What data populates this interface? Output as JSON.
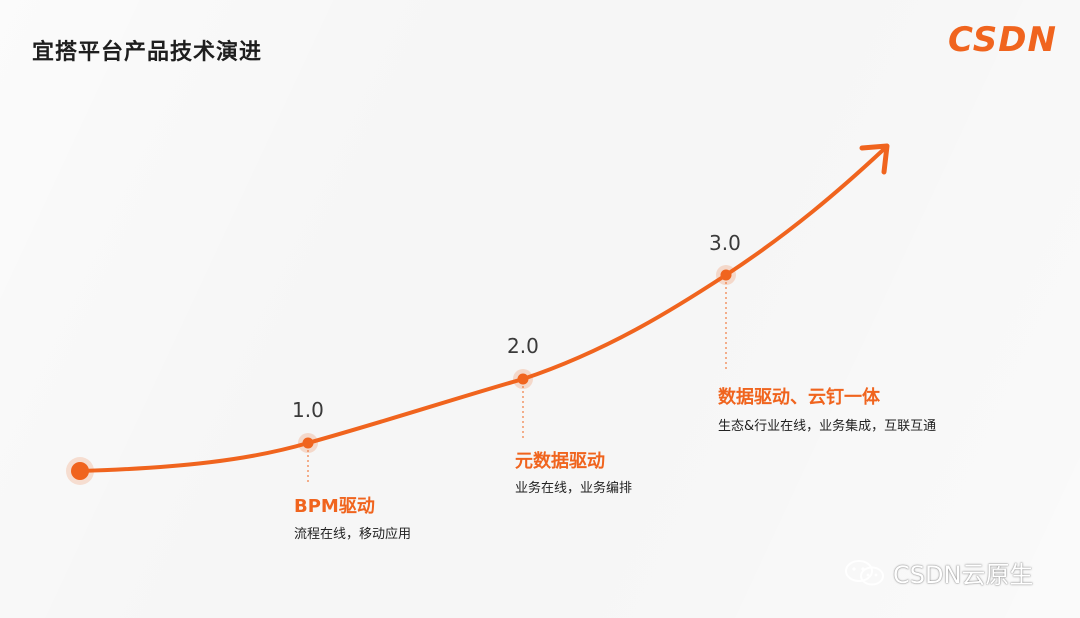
{
  "title": "宜搭平台产品技术演进",
  "logo_text": "CSDN",
  "accent_color": "#f0641e",
  "stages": [
    {
      "version": "1.0",
      "title": "BPM驱动",
      "desc": "流程在线，移动应用"
    },
    {
      "version": "2.0",
      "title": "元数据驱动",
      "desc": "业务在线，业务编排"
    },
    {
      "version": "3.0",
      "title": "数据驱动、云钉一体",
      "desc": "生态&行业在线，业务集成，互联互通"
    }
  ],
  "watermark": {
    "text": "CSDN云原生",
    "icon": "wechat-icon"
  }
}
